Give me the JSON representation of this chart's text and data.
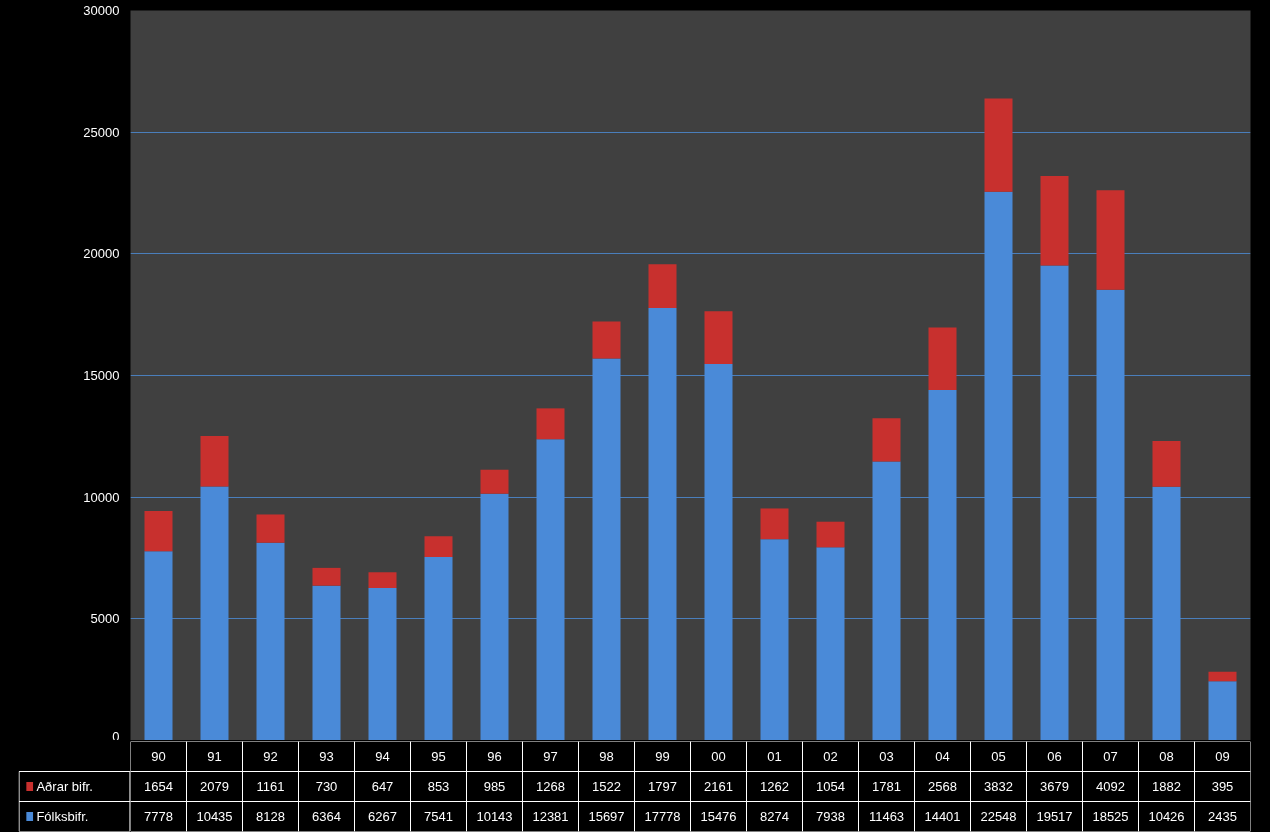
{
  "chart_data": {
    "type": "bar",
    "stacked": true,
    "categories": [
      "90",
      "91",
      "92",
      "93",
      "94",
      "95",
      "96",
      "97",
      "98",
      "99",
      "00",
      "01",
      "02",
      "03",
      "04",
      "05",
      "06",
      "07",
      "08",
      "09"
    ],
    "series": [
      {
        "name": "Fólksbifr.",
        "color": "#4a8ad8",
        "values": [
          7778,
          10435,
          8128,
          6364,
          6267,
          7541,
          10143,
          12381,
          15697,
          17778,
          15476,
          8274,
          7938,
          11463,
          14401,
          22548,
          19517,
          18525,
          10426,
          2435
        ]
      },
      {
        "name": "Aðrar bifr.",
        "color": "#c8302e",
        "values": [
          1654,
          2079,
          1161,
          730,
          647,
          853,
          985,
          1268,
          1522,
          1797,
          2161,
          1262,
          1054,
          1781,
          2568,
          3832,
          3679,
          4092,
          1882,
          395
        ]
      }
    ],
    "ylim": [
      0,
      30000
    ],
    "yticks": [
      0,
      5000,
      10000,
      15000,
      20000,
      25000,
      30000
    ],
    "grid": "y",
    "legend": "bottom",
    "data_labels": true
  }
}
